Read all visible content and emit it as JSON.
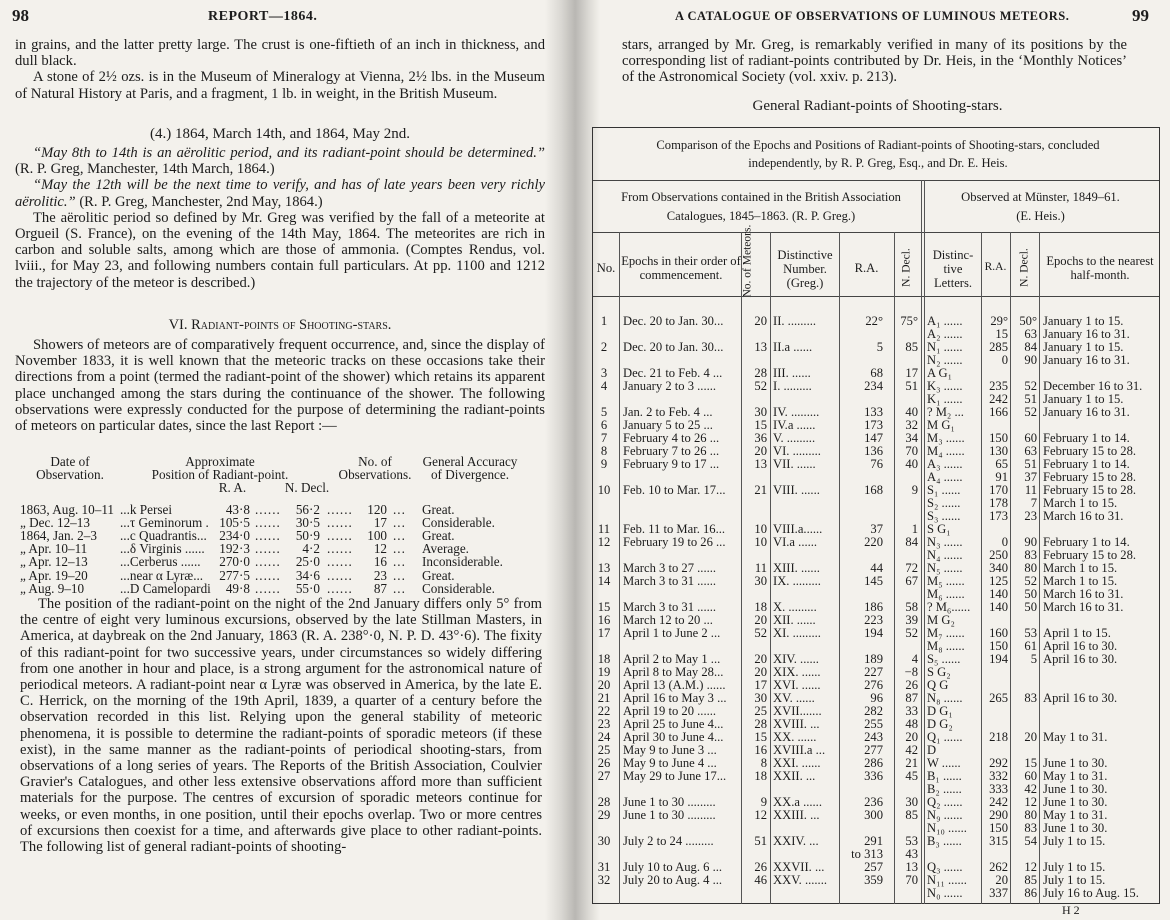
{
  "left_page": {
    "page_number": "98",
    "running_head": "REPORT—1864.",
    "para_intro_1": "in grains, and the latter pretty large.  The crust is one-fiftieth of an inch in thickness, and dull black.",
    "para_intro_2": "A stone of 2½ ozs. is in the Museum of Mineralogy at Vienna, 2½ lbs. in the Museum of Natural History at Paris, and a fragment, 1 lb. in weight, in the British Museum.",
    "section_4_heading": "(4.) 1864, March 14th, and 1864, May 2nd.",
    "quote_1": "“May 8th to 14th is an aërolitic period, and its radiant-point should be determined.”",
    "quote_1_source": " (R. P. Greg, Manchester, 14th March, 1864.)",
    "quote_2": "“May the 12th will be the next time to verify, and has of late years been very richly aërolitic.”",
    "quote_2_source": " (R. P. Greg, Manchester, 2nd May, 1864.)",
    "para_orgueil": "The aërolitic period so defined by Mr. Greg was verified by the fall of a meteorite at Orgueil (S. France), on the evening of the 14th May, 1864. The meteorites are rich in carbon and soluble salts, among which are those of ammonia.  (Comptes Rendus, vol. lviii., for May 23, and following numbers contain full particulars.  At pp. 1100 and 1212 the trajectory of the meteor is described.)",
    "section_vi_number": "VI.",
    "section_vi_title": "Radiant-points of Shooting-stars.",
    "para_showers": "Showers of meteors are of comparatively frequent occurrence, and, since the display of November 1833, it is well known that the meteoric tracks on these occasions take their directions from a point (termed the radiant-point of the shower) which retains its apparent place unchanged among the stars during the continuance of the shower.  The following observations were expressly conducted for the purpose of determining the radiant-points of meteors on particular dates, since the last Report :—",
    "obs_table": {
      "headers": {
        "date_1": "Date of",
        "date_2": "Observation.",
        "pos_1": "Approximate",
        "pos_2": "Position of Radiant-point.",
        "ra": "R. A.",
        "decl": "N. Decl.",
        "num_1": "No. of",
        "num_2": "Observations.",
        "acc_1": "General Accuracy",
        "acc_2": "of Divergence."
      },
      "rows": [
        {
          "date": "1863, Aug. 10–11",
          "radiant": "...k Persei",
          "ra": "43·8",
          "decl": "56·2",
          "count": "120",
          "accuracy": "Great."
        },
        {
          "date": "„  Dec. 12–13",
          "radiant": "...τ Geminorum .",
          "ra": "105·5",
          "decl": "30·5",
          "count": "17",
          "accuracy": "Considerable."
        },
        {
          "date": "1864, Jan. 2–3",
          "radiant": "...c Quadrantis...",
          "ra": "234·0",
          "decl": "50·9",
          "count": "100",
          "accuracy": "Great."
        },
        {
          "date": "„  Apr. 10–11",
          "radiant": "...δ Virginis ......",
          "ra": "192·3",
          "decl": "4·2",
          "count": "12",
          "accuracy": "Average."
        },
        {
          "date": "„  Apr. 12–13",
          "radiant": "...Cerberus ......",
          "ra": "270·0",
          "decl": "25·0",
          "count": "16",
          "accuracy": "Inconsiderable."
        },
        {
          "date": "„  Apr. 19–20",
          "radiant": "...near α Lyræ...",
          "ra": "277·5",
          "decl": "34·6",
          "count": "23",
          "accuracy": "Great."
        },
        {
          "date": "„  Aug.  9–10",
          "radiant": "...D Camelopardi",
          "ra": "49·8",
          "decl": "55·0",
          "count": "87",
          "accuracy": "Considerable."
        }
      ]
    },
    "para_position": "The position of the radiant-point on the night of the 2nd January differs only 5° from the centre of eight very luminous excursions, observed by the late Stillman Masters, in America, at daybreak on the 2nd January, 1863 (R. A. 238°·0, N. P. D. 43°·6).  The fixity of this radiant-point for two successive years, under circumstances so widely differing from one another in hour and place, is a strong argument for the astronomical nature of periodical meteors.  A radiant-point near α Lyræ was observed in America, by the late E. C. Herrick, on the morning of the 19th April, 1839, a quarter of a century before the observation recorded in this list.  Relying upon the general stability of meteoric phenomena, it is possible to determine the radiant-points of sporadic meteors (if these exist), in the same manner as the radiant-points of periodical shooting-stars, from observations of a long series of years. The Reports of the British Association, Coulvier Gravier's Catalogues, and other less extensive observations afford more than sufficient materials for the purpose.  The centres of excursion of sporadic meteors continue for weeks, or even months, in one position, until their epochs overlap.  Two or more centres of excursions then coexist for a time, and afterwards give place to other radiant-points.  The following list of general radiant-points of shooting-"
  },
  "right_page": {
    "page_number": "99",
    "running_head": "A CATALOGUE OF OBSERVATIONS OF LUMINOUS METEORS.",
    "para_continued": "stars, arranged by Mr. Greg, is remarkably verified in many of its positions by the corresponding list of radiant-points contributed by Dr. Heis, in the ‘Monthly Notices’ of the Astronomical Society (vol. xxiv. p. 213).",
    "table_title": "General Radiant-points of Shooting-stars.",
    "table_caption": "Comparison of the Epochs and Positions of Radiant-points of Shooting-stars, concluded independently, by R. P. Greg, Esq., and Dr. E. Heis.",
    "greg_group": "From Observations contained in the British Association Catalogues, 1845–1863.  (R. P. Greg.)",
    "heis_group_1": "Observed at Münster, 1849–61.",
    "heis_group_2": "(E. Heis.)",
    "columns": {
      "no": "No.",
      "epochs": "Epochs in their order of commencement.",
      "meteors": "No. of Meteors.",
      "greg_number": "Distinctive Number. (Greg.)",
      "ra": "R.A.",
      "decl": "N. Decl.",
      "heis_letters": "Distinc-tive Letters.",
      "heis_ra": "R.A.",
      "heis_decl": "N. Decl.",
      "heis_epochs": "Epochs to the nearest half-month."
    },
    "rows": [
      {
        "no": "1",
        "epoch": "Dec. 20 to Jan. 30...",
        "meteors": "20",
        "greg": "II. .........",
        "ra": "22°",
        "decl": "75°",
        "letter": "A₁ ......",
        "hra": "29°",
        "hdecl": "50°",
        "hepoch": "January 1 to 15."
      },
      {
        "letter": "A₂ ......",
        "hra": "15",
        "hdecl": "63",
        "hepoch": "January 16 to 31."
      },
      {
        "no": "2",
        "epoch": "Dec. 20 to Jan. 30...",
        "meteors": "13",
        "greg": "II.a  ......",
        "ra": "5",
        "decl": "85",
        "letter": "N₁ ......",
        "hra": "285",
        "hdecl": "84",
        "hepoch": "January 1 to 15."
      },
      {
        "letter": "N₂ ......",
        "hra": "0",
        "hdecl": "90",
        "hepoch": "January 16 to 31."
      },
      {
        "no": "3",
        "epoch": "Dec. 21 to Feb. 4 ...",
        "meteors": "28",
        "greg": "III.  ......",
        "ra": "68",
        "decl": "17",
        "letter": "A G₁"
      },
      {
        "no": "4",
        "epoch": "January 2 to 3 ......",
        "meteors": "52",
        "greg": "I.  .........",
        "ra": "234",
        "decl": "51",
        "letter": "K₃ ......",
        "hra": "235",
        "hdecl": "52",
        "hepoch": "December 16 to 31."
      },
      {
        "letter": "K₁ ......",
        "hra": "242",
        "hdecl": "51",
        "hepoch": "January 1 to 15."
      },
      {
        "no": "5",
        "epoch": "Jan. 2 to Feb. 4  ...",
        "meteors": "30",
        "greg": "IV. .........",
        "ra": "133",
        "decl": "40",
        "letter": "? M₂  ...",
        "hra": "166",
        "hdecl": "52",
        "hepoch": "January 16 to 31."
      },
      {
        "no": "6",
        "epoch": "January 5 to 25  ...",
        "meteors": "15",
        "greg": "IV.a ......",
        "ra": "173",
        "decl": "32",
        "letter": "M G₁"
      },
      {
        "no": "7",
        "epoch": "February 4 to 26 ...",
        "meteors": "36",
        "greg": "V.  .........",
        "ra": "147",
        "decl": "34",
        "letter": "M₃ ......",
        "hra": "150",
        "hdecl": "60",
        "hepoch": "February 1 to 14."
      },
      {
        "no": "8",
        "epoch": "February 7 to 26 ...",
        "meteors": "20",
        "greg": "VI. .........",
        "ra": "136",
        "decl": "70",
        "letter": "M₄ ......",
        "hra": "130",
        "hdecl": "63",
        "hepoch": "February 15 to 28."
      },
      {
        "no": "9",
        "epoch": "February 9 to 17 ...",
        "meteors": "13",
        "greg": "VII.  ......",
        "ra": "76",
        "decl": "40",
        "letter": "A₃ ......",
        "hra": "65",
        "hdecl": "51",
        "hepoch": "February 1 to 14."
      },
      {
        "letter": "A₄ ......",
        "hra": "91",
        "hdecl": "37",
        "hepoch": "February 15 to 28."
      },
      {
        "no": "10",
        "epoch": "Feb. 10 to Mar. 17...",
        "meteors": "21",
        "greg": "VIII. ......",
        "ra": "168",
        "decl": "9",
        "letter": "S₁ ......",
        "hra": "170",
        "hdecl": "11",
        "hepoch": "February 15 to 28."
      },
      {
        "letter": "S₂ ......",
        "hra": "178",
        "hdecl": "7",
        "hepoch": "March 1 to 15."
      },
      {
        "letter": "S₃ ......",
        "hra": "173",
        "hdecl": "23",
        "hepoch": "March 16 to 31."
      },
      {
        "no": "11",
        "epoch": "Feb. 11 to Mar. 16...",
        "meteors": "10",
        "greg": "VIII.a......",
        "ra": "37",
        "decl": "1",
        "letter": "S G₁"
      },
      {
        "no": "12",
        "epoch": "February 19 to 26 ...",
        "meteors": "10",
        "greg": "VI.a  ......",
        "ra": "220",
        "decl": "84",
        "letter": "N₃ ......",
        "hra": "0",
        "hdecl": "90",
        "hepoch": "February 1 to 14."
      },
      {
        "letter": "N₄ ......",
        "hra": "250",
        "hdecl": "83",
        "hepoch": "February 15 to 28."
      },
      {
        "no": "13",
        "epoch": "March 3 to 27  ......",
        "meteors": "11",
        "greg": "XIII. ......",
        "ra": "44",
        "decl": "72",
        "letter": "N₅ ......",
        "hra": "340",
        "hdecl": "80",
        "hepoch": "March 1 to 15."
      },
      {
        "no": "14",
        "epoch": "March 3 to 31  ......",
        "meteors": "30",
        "greg": "IX. .........",
        "ra": "145",
        "decl": "67",
        "letter": "M₅ ......",
        "hra": "125",
        "hdecl": "52",
        "hepoch": "March 1 to 15."
      },
      {
        "letter": "M₆ ......",
        "hra": "140",
        "hdecl": "50",
        "hepoch": "March 16 to 31."
      },
      {
        "no": "15",
        "epoch": "March 3 to 31  ......",
        "meteors": "18",
        "greg": "X.  .........",
        "ra": "186",
        "decl": "58",
        "letter": "? M₆......",
        "hra": "140",
        "hdecl": "50",
        "hepoch": "March 16 to 31."
      },
      {
        "no": "16",
        "epoch": "March 12 to 20  ...",
        "meteors": "20",
        "greg": "XII.  ......",
        "ra": "223",
        "decl": "39",
        "letter": "M G₂"
      },
      {
        "no": "17",
        "epoch": "April 1 to June 2 ...",
        "meteors": "52",
        "greg": "XI. .........",
        "ra": "194",
        "decl": "52",
        "letter": "M₇ ......",
        "hra": "160",
        "hdecl": "53",
        "hepoch": "April 1 to 15."
      },
      {
        "letter": "M₈ ......",
        "hra": "150",
        "hdecl": "61",
        "hepoch": "April 16 to 30."
      },
      {
        "no": "18",
        "epoch": "April 2 to May 1  ...",
        "meteors": "20",
        "greg": "XIV.  ......",
        "ra": "189",
        "decl": "4",
        "letter": "S₅ ......",
        "hra": "194",
        "hdecl": "5",
        "hepoch": "April 16 to 30."
      },
      {
        "no": "19",
        "epoch": "April 8 to May 28...",
        "meteors": "20",
        "greg": "XIX.  ......",
        "ra": "227",
        "decl": "−8",
        "letter": "S G₂"
      },
      {
        "no": "20",
        "epoch": "April 13 (A.M.) ......",
        "meteors": "17",
        "greg": "XVI.  ......",
        "ra": "276",
        "decl": "26",
        "letter": "Q G"
      },
      {
        "no": "21",
        "epoch": "April 16 to May 3 ...",
        "meteors": "30",
        "greg": "XV.  ......",
        "ra": "96",
        "decl": "87",
        "letter": "N₈ ......",
        "hra": "265",
        "hdecl": "83",
        "hepoch": "April 16 to 30."
      },
      {
        "no": "22",
        "epoch": "April 19 to 20  ......",
        "meteors": "25",
        "greg": "XVII.......",
        "ra": "282",
        "decl": "33",
        "letter": "D G₁"
      },
      {
        "no": "23",
        "epoch": "April 25 to June 4...",
        "meteors": "28",
        "greg": "XVIII.  ...",
        "ra": "255",
        "decl": "48",
        "letter": "D G₂"
      },
      {
        "no": "24",
        "epoch": "April 30 to June 4...",
        "meteors": "15",
        "greg": "XX.  ......",
        "ra": "243",
        "decl": "20",
        "letter": "Q₁ ......",
        "hra": "218",
        "hdecl": "20",
        "hepoch": "May 1 to 31."
      },
      {
        "no": "25",
        "epoch": "May 9 to June 3  ...",
        "meteors": "16",
        "greg": "XVIII.a ...",
        "ra": "277",
        "decl": "42",
        "letter": "D"
      },
      {
        "no": "26",
        "epoch": "May 9 to June 4  ...",
        "meteors": "8",
        "greg": "XXI.  ......",
        "ra": "286",
        "decl": "21",
        "letter": "W  ......",
        "hra": "292",
        "hdecl": "15",
        "hepoch": "June 1 to 30."
      },
      {
        "no": "27",
        "epoch": "May 29 to June 17...",
        "meteors": "18",
        "greg": "XXII.  ...",
        "ra": "336",
        "decl": "45",
        "letter": "B₁ ......",
        "hra": "332",
        "hdecl": "60",
        "hepoch": "May 1 to 31."
      },
      {
        "letter": "B₂ ......",
        "hra": "333",
        "hdecl": "42",
        "hepoch": "June 1 to 30."
      },
      {
        "no": "28",
        "epoch": "June 1 to 30 .........",
        "meteors": "9",
        "greg": "XX.a ......",
        "ra": "236",
        "decl": "30",
        "letter": "Q₂ ......",
        "hra": "242",
        "hdecl": "12",
        "hepoch": "June 1 to 30."
      },
      {
        "no": "29",
        "epoch": "June 1 to 30 .........",
        "meteors": "12",
        "greg": "XXIII.  ...",
        "ra": "300",
        "decl": "85",
        "letter": "N₉ ......",
        "hra": "290",
        "hdecl": "80",
        "hepoch": "May 1 to 31."
      },
      {
        "letter": "N₁₀ ......",
        "hra": "150",
        "hdecl": "83",
        "hepoch": "June 1 to 30."
      },
      {
        "no": "30",
        "epoch": "July 2 to 24 .........",
        "meteors": "51",
        "greg": "XXIV.  ...",
        "ra": "291",
        "decl": "53",
        "letter": "B₃ ......",
        "hra": "315",
        "hdecl": "54",
        "hepoch": "July 1 to 15."
      },
      {
        "ra": "to 313",
        "decl": "43"
      },
      {
        "no": "31",
        "epoch": "July 10 to Aug. 6 ...",
        "meteors": "26",
        "greg": "XXVII.  ...",
        "ra": "257",
        "decl": "13",
        "letter": "Q₃ ......",
        "hra": "262",
        "hdecl": "12",
        "hepoch": "July 1 to 15."
      },
      {
        "no": "32",
        "epoch": "July 20 to Aug. 4 ...",
        "meteors": "46",
        "greg": "XXV. .......",
        "ra": "359",
        "decl": "70",
        "letter": "N₁₁ ......",
        "hra": "20",
        "hdecl": "85",
        "hepoch": "July 1 to 15."
      },
      {
        "letter": "N₀ ......",
        "hra": "337",
        "hdecl": "86",
        "hepoch": "July 16 to Aug. 15."
      }
    ],
    "signature": "H 2"
  }
}
